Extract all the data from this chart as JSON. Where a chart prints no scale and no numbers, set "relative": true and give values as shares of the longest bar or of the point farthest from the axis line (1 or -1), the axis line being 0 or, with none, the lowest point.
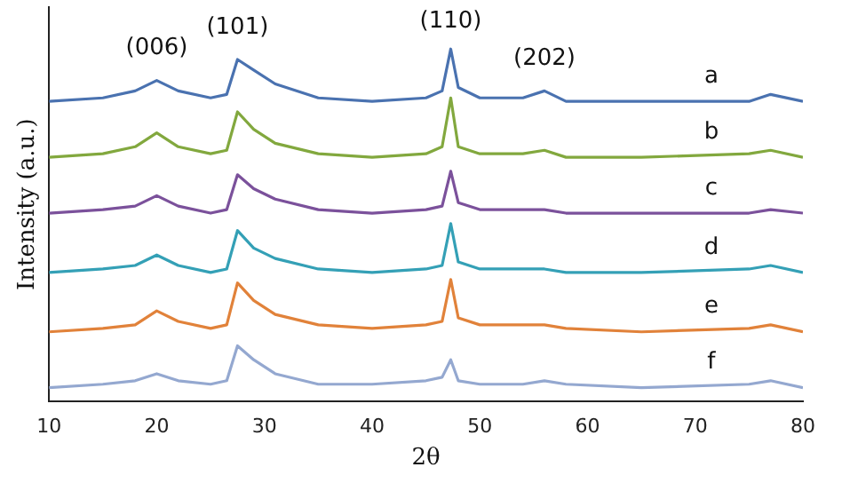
{
  "chart_data": {
    "type": "line",
    "relative": true,
    "xlabel": "2θ",
    "ylabel": "Intensity (a.u.)",
    "x": [
      10,
      15,
      18,
      20,
      22,
      25,
      26.5,
      27.5,
      29,
      31,
      35,
      40,
      45,
      46.5,
      47.3,
      48,
      50,
      54,
      56,
      58,
      65,
      75,
      77,
      80
    ],
    "xlim": [
      10,
      80
    ],
    "xticks": [
      10,
      20,
      30,
      40,
      50,
      60,
      70,
      80
    ],
    "grid": false,
    "legend": false,
    "marker": "none",
    "series": [
      {
        "name": "a",
        "color": "#4a72b0",
        "values": [
          0.85,
          0.86,
          0.88,
          0.91,
          0.88,
          0.86,
          0.87,
          0.97,
          0.94,
          0.9,
          0.86,
          0.85,
          0.86,
          0.88,
          1.0,
          0.89,
          0.86,
          0.86,
          0.88,
          0.85,
          0.85,
          0.85,
          0.87,
          0.85
        ]
      },
      {
        "name": "b",
        "color": "#82a83e",
        "values": [
          0.69,
          0.7,
          0.72,
          0.76,
          0.72,
          0.7,
          0.71,
          0.82,
          0.77,
          0.73,
          0.7,
          0.69,
          0.7,
          0.72,
          0.86,
          0.72,
          0.7,
          0.7,
          0.71,
          0.69,
          0.69,
          0.7,
          0.71,
          0.69
        ]
      },
      {
        "name": "c",
        "color": "#7b519b",
        "values": [
          0.53,
          0.54,
          0.55,
          0.58,
          0.55,
          0.53,
          0.54,
          0.64,
          0.6,
          0.57,
          0.54,
          0.53,
          0.54,
          0.55,
          0.65,
          0.56,
          0.54,
          0.54,
          0.54,
          0.53,
          0.53,
          0.53,
          0.54,
          0.53
        ]
      },
      {
        "name": "d",
        "color": "#34a0b6",
        "values": [
          0.36,
          0.37,
          0.38,
          0.41,
          0.38,
          0.36,
          0.37,
          0.48,
          0.43,
          0.4,
          0.37,
          0.36,
          0.37,
          0.38,
          0.5,
          0.39,
          0.37,
          0.37,
          0.37,
          0.36,
          0.36,
          0.37,
          0.38,
          0.36
        ]
      },
      {
        "name": "e",
        "color": "#e1823a",
        "values": [
          0.19,
          0.2,
          0.21,
          0.25,
          0.22,
          0.2,
          0.21,
          0.33,
          0.28,
          0.24,
          0.21,
          0.2,
          0.21,
          0.22,
          0.34,
          0.23,
          0.21,
          0.21,
          0.21,
          0.2,
          0.19,
          0.2,
          0.21,
          0.19
        ]
      },
      {
        "name": "f",
        "color": "#94a8d0",
        "values": [
          0.03,
          0.04,
          0.05,
          0.07,
          0.05,
          0.04,
          0.05,
          0.15,
          0.11,
          0.07,
          0.04,
          0.04,
          0.05,
          0.06,
          0.11,
          0.05,
          0.04,
          0.04,
          0.05,
          0.04,
          0.03,
          0.04,
          0.05,
          0.03
        ]
      }
    ],
    "annotations": [
      "(006)",
      "(101)",
      "(110)",
      "(202)"
    ]
  }
}
